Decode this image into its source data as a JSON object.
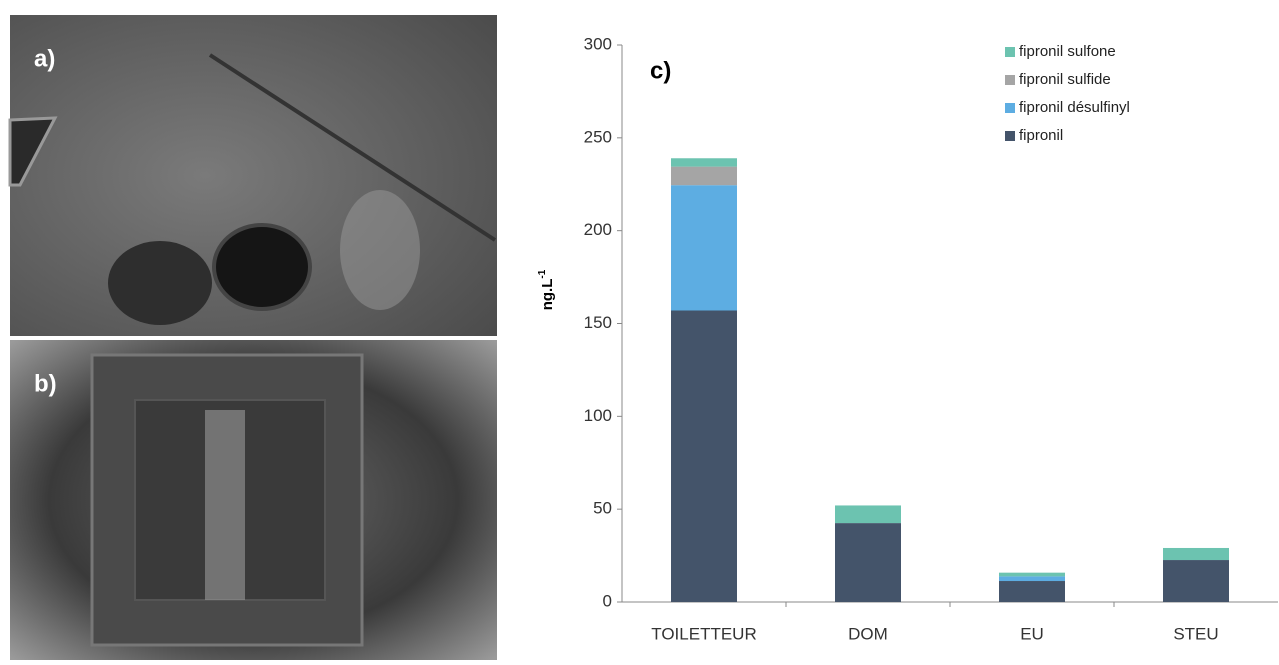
{
  "panels": {
    "a": "a)",
    "b": "b)"
  },
  "chart_data": {
    "type": "stacked-bar",
    "panel_label": "c)",
    "ylabel": "ng.L",
    "ylabel_superscript": "-1",
    "categories": [
      "TOILETTEUR",
      "DOM",
      "EU",
      "STEU"
    ],
    "series": [
      {
        "name": "fipronil",
        "color": "#44546a",
        "values": [
          157,
          42.5,
          11.3,
          22.6
        ]
      },
      {
        "name": "fipronil désulfinyl",
        "color": "#5dade2",
        "values": [
          67.5,
          0,
          2.5,
          0
        ]
      },
      {
        "name": "fipronil sulfide",
        "color": "#a5a5a5",
        "values": [
          10,
          0,
          0,
          0
        ]
      },
      {
        "name": "fipronil sulfone",
        "color": "#6cc3b0",
        "values": [
          4.5,
          9.5,
          2,
          6.5
        ]
      }
    ],
    "ylim": [
      0,
      300
    ],
    "yticks": [
      0,
      50,
      100,
      150,
      200,
      250,
      300
    ],
    "grid": false
  }
}
